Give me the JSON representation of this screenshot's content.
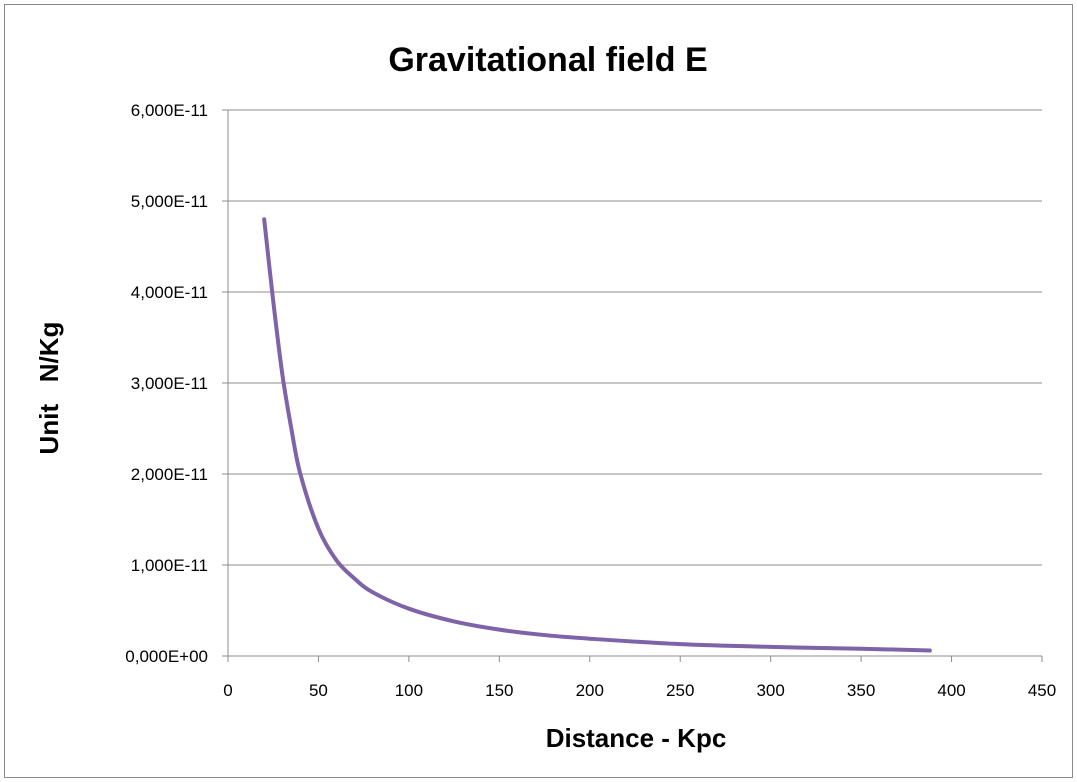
{
  "chart_data": {
    "type": "line",
    "title": "Gravitational field E",
    "xlabel": "Distance - Kpc",
    "ylabel": "Unit   N/Kg",
    "xlim": [
      0,
      450
    ],
    "ylim": [
      0,
      6e-11
    ],
    "x_ticks": [
      0,
      50,
      100,
      150,
      200,
      250,
      300,
      350,
      400,
      450
    ],
    "x_tick_labels": [
      "0",
      "50",
      "100",
      "150",
      "200",
      "250",
      "300",
      "350",
      "400",
      "450"
    ],
    "y_ticks": [
      0,
      1e-11,
      2e-11,
      3e-11,
      4e-11,
      5e-11,
      6e-11
    ],
    "y_tick_labels": [
      "0,000E+00",
      "1,000E-11",
      "2,000E-11",
      "3,000E-11",
      "4,000E-11",
      "5,000E-11",
      "6,000E-11"
    ],
    "grid": "horizontal",
    "legend": "none",
    "series": [
      {
        "color": "#7f63a8",
        "x": [
          20,
          25,
          30,
          35,
          40,
          50,
          60,
          70,
          80,
          100,
          125,
          150,
          175,
          200,
          250,
          300,
          350,
          388
        ],
        "y": [
          4.8e-11,
          3.9e-11,
          3.1e-11,
          2.5e-11,
          2e-11,
          1.4e-11,
          1.05e-11,
          8.5e-12,
          7e-12,
          5.2e-12,
          3.8e-12,
          2.9e-12,
          2.3e-12,
          1.9e-12,
          1.3e-12,
          1e-12,
          8e-13,
          6e-13
        ]
      }
    ]
  }
}
